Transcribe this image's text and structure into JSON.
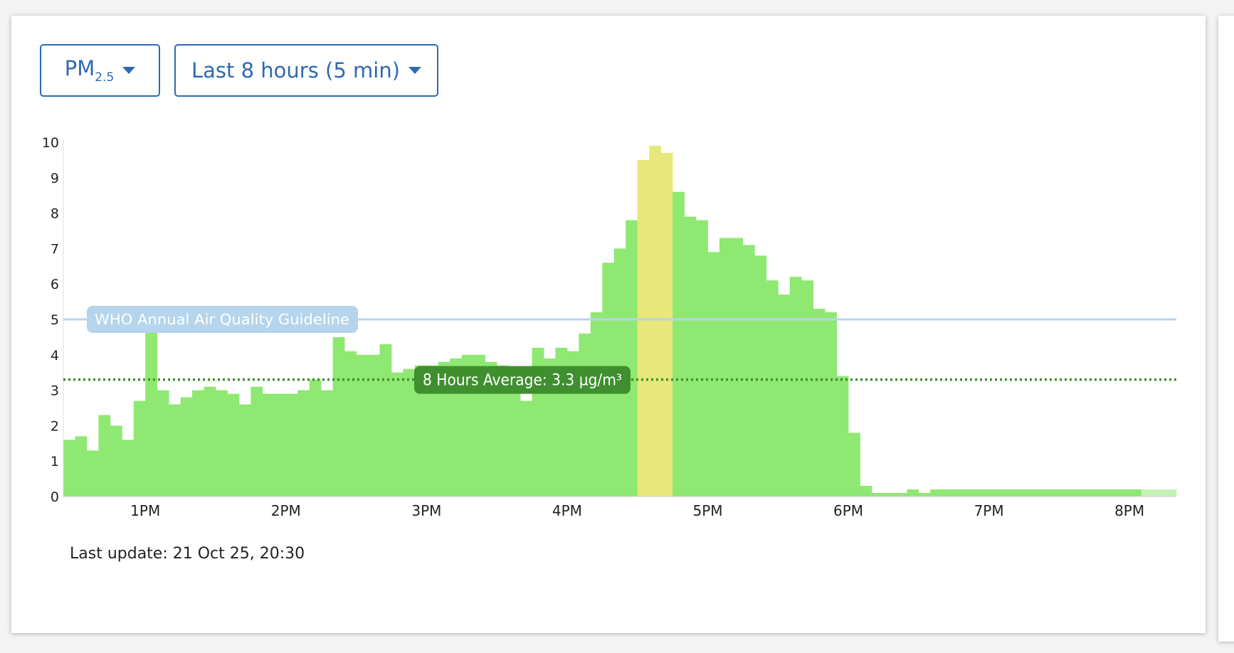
{
  "controls": {
    "pollutant": {
      "main": "PM",
      "subscript": "2.5"
    },
    "range": "Last 8 hours (5 min)"
  },
  "footnote": "Last update: 21 Oct 25, 20:30",
  "colors": {
    "good": "#8ee872",
    "moderate": "#e8e87a",
    "pending": "#c4f2b3",
    "guideline": "#b6d4ec",
    "average": "#3f8f2e"
  },
  "chart_data": {
    "type": "bar",
    "title": "",
    "xlabel": "",
    "ylabel": "",
    "ylim": [
      0,
      10
    ],
    "y_ticks": [
      "0",
      "1",
      "2",
      "3",
      "4",
      "5",
      "6",
      "7",
      "8",
      "9",
      "10"
    ],
    "x_ticks": [
      "1PM",
      "2PM",
      "3PM",
      "4PM",
      "5PM",
      "6PM",
      "7PM",
      "8PM"
    ],
    "interval_minutes": 5,
    "x_start": "12:25",
    "grid": false,
    "values": [
      1.6,
      1.7,
      1.3,
      2.3,
      2.0,
      1.6,
      2.7,
      4.7,
      3.0,
      2.6,
      2.8,
      3.0,
      3.1,
      3.0,
      2.9,
      2.6,
      3.1,
      2.9,
      2.9,
      2.9,
      3.0,
      3.3,
      3.0,
      4.5,
      4.1,
      4.0,
      4.0,
      4.3,
      3.5,
      3.6,
      3.7,
      3.7,
      3.8,
      3.9,
      4.0,
      4.0,
      3.8,
      3.7,
      3.6,
      2.7,
      4.2,
      3.9,
      4.2,
      4.1,
      4.6,
      5.2,
      6.6,
      7.0,
      7.8,
      9.5,
      9.9,
      9.7,
      8.6,
      7.9,
      7.8,
      6.9,
      7.3,
      7.3,
      7.1,
      6.8,
      6.1,
      5.7,
      6.2,
      6.1,
      5.3,
      5.2,
      3.4,
      1.8,
      0.3,
      0.1,
      0.1,
      0.1,
      0.2,
      0.1,
      0.2,
      0.2,
      0.2,
      0.2,
      0.2,
      0.2,
      0.2,
      0.2,
      0.2,
      0.2,
      0.2,
      0.2,
      0.2,
      0.2,
      0.2,
      0.2,
      0.2,
      0.2,
      0.2,
      0.2,
      0.2
    ],
    "category": [
      "good",
      "good",
      "good",
      "good",
      "good",
      "good",
      "good",
      "good",
      "good",
      "good",
      "good",
      "good",
      "good",
      "good",
      "good",
      "good",
      "good",
      "good",
      "good",
      "good",
      "good",
      "good",
      "good",
      "good",
      "good",
      "good",
      "good",
      "good",
      "good",
      "good",
      "good",
      "good",
      "good",
      "good",
      "good",
      "good",
      "good",
      "good",
      "good",
      "good",
      "good",
      "good",
      "good",
      "good",
      "good",
      "good",
      "good",
      "good",
      "good",
      "moderate",
      "moderate",
      "moderate",
      "good",
      "good",
      "good",
      "good",
      "good",
      "good",
      "good",
      "good",
      "good",
      "good",
      "good",
      "good",
      "good",
      "good",
      "good",
      "good",
      "good",
      "good",
      "good",
      "good",
      "good",
      "good",
      "good",
      "good",
      "good",
      "good",
      "good",
      "good",
      "good",
      "good",
      "good",
      "good",
      "good",
      "good",
      "good",
      "good",
      "good",
      "good",
      "good",
      "good",
      "pending",
      "pending",
      "pending"
    ],
    "reference_lines": [
      {
        "label": "WHO Annual Air Quality Guideline",
        "value": 5,
        "style": "solid"
      },
      {
        "label": "8 Hours Average: 3.3 µg/m³",
        "value": 3.3,
        "style": "dotted"
      }
    ]
  }
}
